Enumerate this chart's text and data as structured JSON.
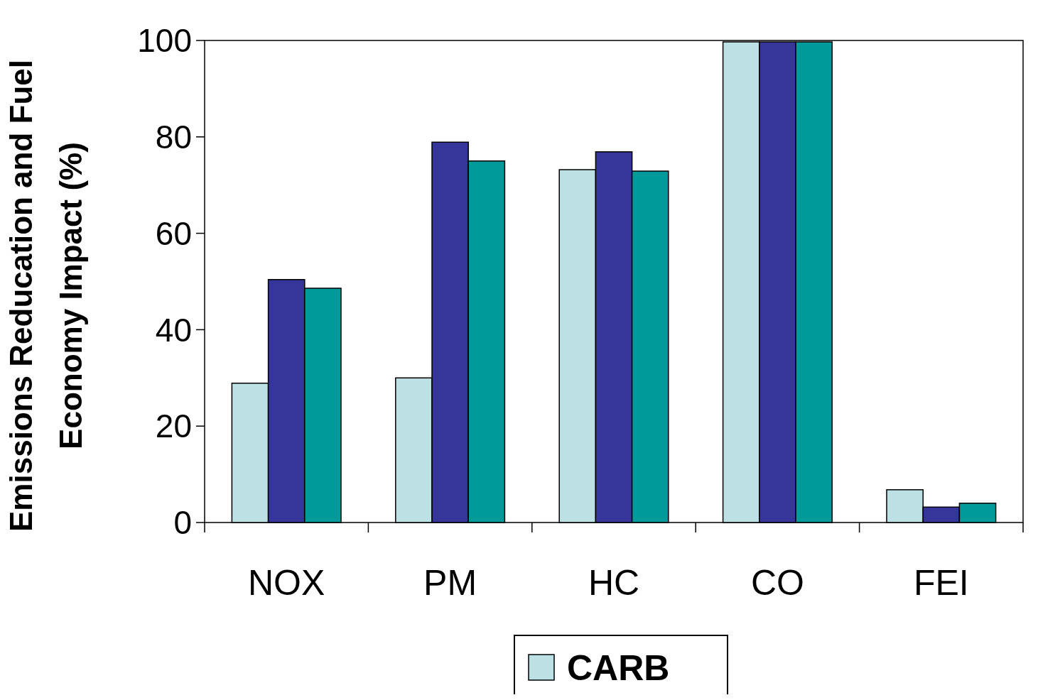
{
  "chart_data": {
    "type": "bar",
    "ylabel": "Emissions Reducation and Fuel Economy Impact (%)",
    "categories": [
      "NOX",
      "PM",
      "HC",
      "CO",
      "FEI"
    ],
    "series": [
      {
        "name": "CARB",
        "color": "#bce0e3",
        "values": [
          28.9,
          30.0,
          73.2,
          99.7,
          6.8
        ]
      },
      {
        "color": "#35359a",
        "values": [
          50.4,
          78.9,
          76.9,
          99.7,
          3.2
        ]
      },
      {
        "color": "#009a9a",
        "values": [
          48.6,
          75.0,
          72.9,
          99.7,
          4.0
        ]
      }
    ],
    "ylim": [
      0,
      100
    ],
    "yticks": [
      0,
      20,
      40,
      60,
      80,
      100
    ],
    "grid": false,
    "legend": "bottom"
  }
}
